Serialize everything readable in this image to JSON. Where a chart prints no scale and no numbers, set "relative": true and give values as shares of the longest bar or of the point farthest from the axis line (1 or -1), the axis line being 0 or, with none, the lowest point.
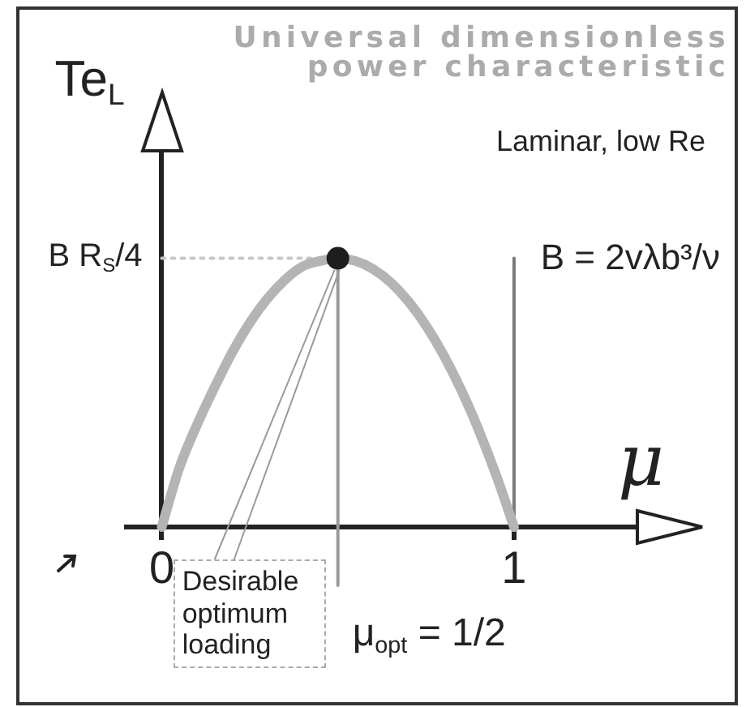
{
  "chart_data": {
    "type": "line",
    "title": "Universal dimensionless power characteristic",
    "subtitle": "Laminar, low Re",
    "xlabel": "μ",
    "ylabel": "Te$_{L}$",
    "relative": true,
    "x": [
      0,
      0.05,
      0.1,
      0.15,
      0.2,
      0.25,
      0.3,
      0.35,
      0.4,
      0.45,
      0.5,
      0.55,
      0.6,
      0.65,
      0.7,
      0.75,
      0.8,
      0.85,
      0.9,
      0.95,
      1
    ],
    "series": [
      {
        "type": "line",
        "color": "#b4b4b4",
        "values": [
          0,
          0.22,
          0.38,
          0.52,
          0.65,
          0.76,
          0.85,
          0.92,
          0.97,
          0.99,
          1,
          0.99,
          0.96,
          0.91,
          0.84,
          0.75,
          0.64,
          0.51,
          0.36,
          0.19,
          0
        ]
      },
      {
        "type": "scatter",
        "color": "#1e1e1e",
        "marker": "circle",
        "x": [
          0.5
        ],
        "values": [
          1
        ]
      }
    ],
    "xlim": [
      -0.1,
      1.35
    ],
    "xticks": [
      0,
      1
    ],
    "ref_lines": [
      {
        "axis": "y",
        "value": 1,
        "label": "B R$_{S}$/4",
        "color": "#c8c8c8",
        "line_style": "dotted"
      },
      {
        "axis": "x",
        "value": 0.5,
        "label": "μ$_{opt}$ = 1/2",
        "color": "#9a9a9a"
      },
      {
        "axis": "x",
        "value": 1,
        "color": "#7a7a7a"
      }
    ],
    "annotations": [
      "B = 2vλb³/ν",
      {
        "text": "Desirable optimum loading",
        "x": 0.5,
        "y": 1
      }
    ],
    "legend": false,
    "grid": false,
    "marker": "none"
  }
}
